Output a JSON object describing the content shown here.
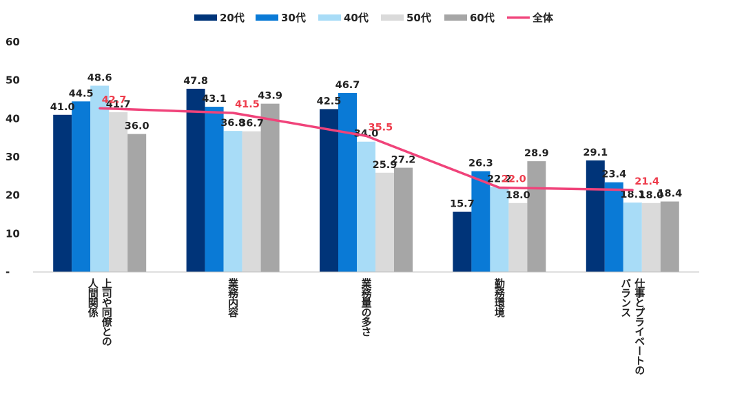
{
  "chart_data": {
    "type": "bar",
    "categories": [
      [
        "上司や同僚との",
        "人間関係"
      ],
      [
        "業務内容"
      ],
      [
        "業務量の多さ"
      ],
      [
        "勤務環境"
      ],
      [
        "仕事とプライベートの",
        "バランス"
      ]
    ],
    "series": [
      {
        "name": "20代",
        "color": "#003479",
        "values": [
          41.0,
          47.8,
          42.5,
          15.7,
          29.1
        ]
      },
      {
        "name": "30代",
        "color": "#0a7ad6",
        "values": [
          44.5,
          43.1,
          46.7,
          26.3,
          23.4
        ]
      },
      {
        "name": "40代",
        "color": "#a8dcf7",
        "values": [
          48.6,
          36.8,
          34.0,
          22.2,
          18.1
        ]
      },
      {
        "name": "50代",
        "color": "#dadada",
        "values": [
          41.7,
          36.7,
          25.9,
          18.0,
          18.0
        ]
      },
      {
        "name": "60代",
        "color": "#a6a6a6",
        "values": [
          36.0,
          43.9,
          27.2,
          28.9,
          18.4
        ]
      }
    ],
    "line_series": {
      "name": "全体",
      "color": "#f0437a",
      "label_color": "#ee3b4b",
      "values": [
        42.7,
        41.5,
        35.5,
        22.0,
        21.4
      ]
    },
    "value_labels": {
      "bars": [
        [
          "41.0",
          "47.8",
          "42.5",
          "15.7",
          "29.1"
        ],
        [
          "44.5",
          "43.1",
          "46.7",
          "26.3",
          "23.4"
        ],
        [
          "48.6",
          "36.8",
          "34.0",
          "22.2",
          "18.1"
        ],
        [
          "41.7",
          "36.7",
          "25.9",
          "18.0",
          "18.0"
        ],
        [
          "36.0",
          "43.9",
          "27.2",
          "28.9",
          "18.4"
        ]
      ],
      "line": [
        "42.7",
        "41.5",
        "35.5",
        "22.0",
        "21.4"
      ]
    },
    "y_ticks": [
      "-",
      "10",
      "20",
      "30",
      "40",
      "50",
      "60"
    ],
    "ylim": [
      0,
      60
    ],
    "legend_position": "top-center",
    "grid": false
  }
}
